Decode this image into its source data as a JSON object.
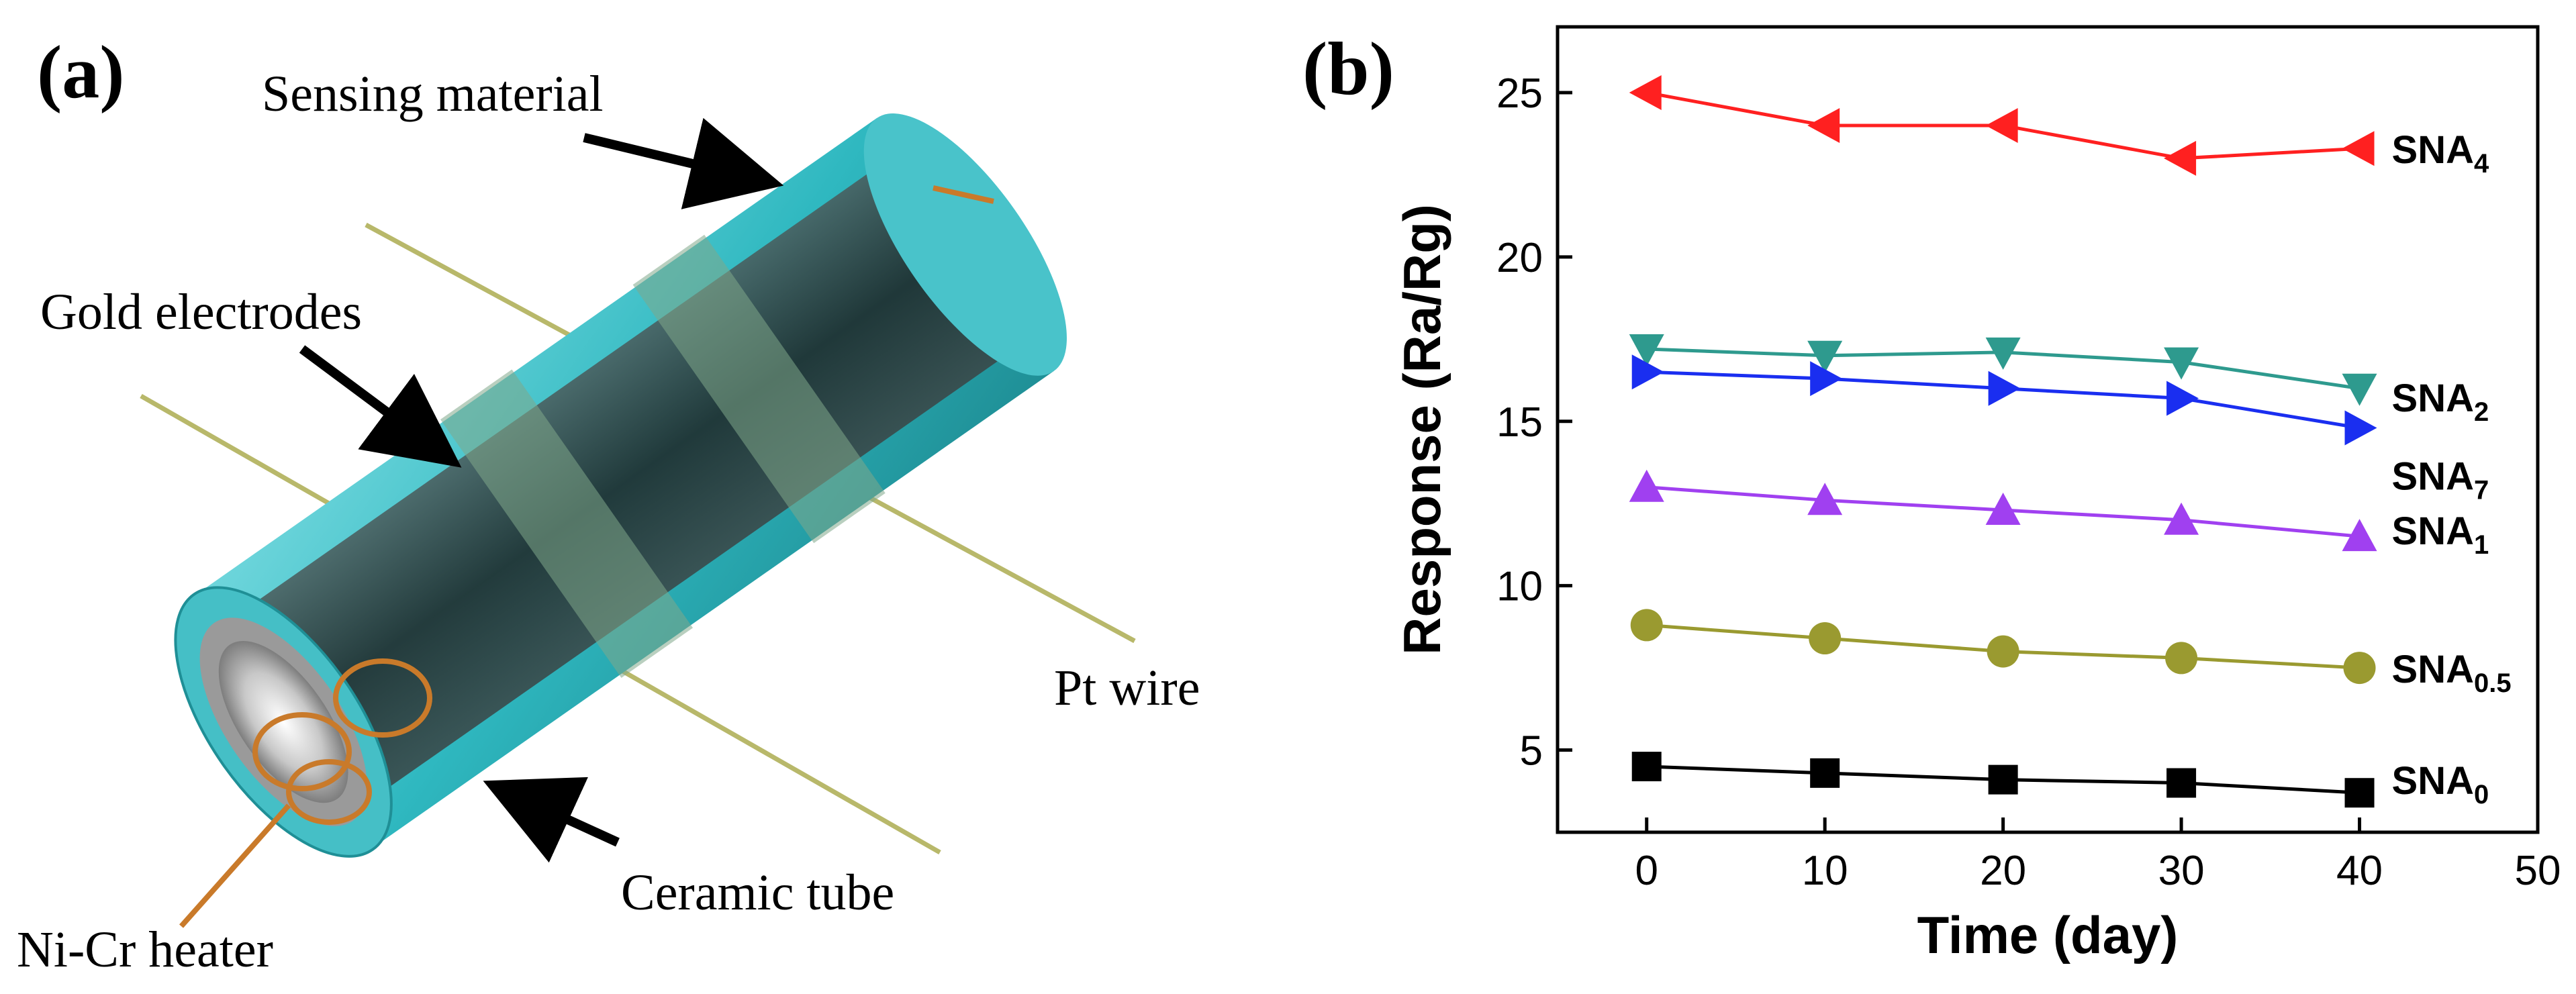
{
  "panel_a": {
    "label": "(a)",
    "callouts": {
      "sensing_material": "Sensing material",
      "gold_electrodes": "Gold electrodes",
      "pt_wire": "Pt wire",
      "ceramic_tube": "Ceramic tube",
      "heater": "Ni-Cr heater"
    },
    "colors": {
      "sensing_layer": "#2fb8c0",
      "ceramic_core": "#2b2b2b",
      "electrode": "#7fa88a",
      "pt_wire": "#b8b86a",
      "heater_coil": "#c97a2a"
    }
  },
  "panel_b": {
    "label": "(b)",
    "chart_data": {
      "type": "line",
      "xlabel": "Time (day)",
      "ylabel": "Response (Ra/Rg)",
      "xlim": [
        -5,
        50
      ],
      "ylim": [
        2.5,
        27
      ],
      "xticks": [
        0,
        10,
        20,
        30,
        40,
        50
      ],
      "yticks": [
        5,
        10,
        15,
        20,
        25
      ],
      "x": [
        0,
        10,
        20,
        30,
        40
      ],
      "grid": false,
      "series": [
        {
          "name": "SNA4",
          "base": "SNA",
          "sub": "4",
          "color": "#ff2020",
          "marker": "triangle-left",
          "values": [
            25.0,
            24.0,
            24.0,
            23.0,
            23.3
          ]
        },
        {
          "name": "SNA2",
          "base": "SNA",
          "sub": "2",
          "color": "#2e9a8e",
          "marker": "triangle-down",
          "values": [
            17.2,
            17.0,
            17.1,
            16.8,
            16.0
          ]
        },
        {
          "name": "SNA7",
          "base": "SNA",
          "sub": "7",
          "color": "#1a2ef0",
          "marker": "triangle-right",
          "values": [
            16.5,
            16.3,
            16.0,
            15.7,
            14.8
          ]
        },
        {
          "name": "SNA1",
          "base": "SNA",
          "sub": "1",
          "color": "#a040f0",
          "marker": "triangle-up",
          "values": [
            13.0,
            12.6,
            12.3,
            12.0,
            11.5
          ]
        },
        {
          "name": "SNA0.5",
          "base": "SNA",
          "sub": "0.5",
          "color": "#9a9a30",
          "marker": "circle",
          "values": [
            8.8,
            8.4,
            8.0,
            7.8,
            7.5
          ]
        },
        {
          "name": "SNA0",
          "base": "SNA",
          "sub": "0",
          "color": "#000000",
          "marker": "square",
          "values": [
            4.5,
            4.3,
            4.1,
            4.0,
            3.7
          ]
        }
      ]
    }
  }
}
